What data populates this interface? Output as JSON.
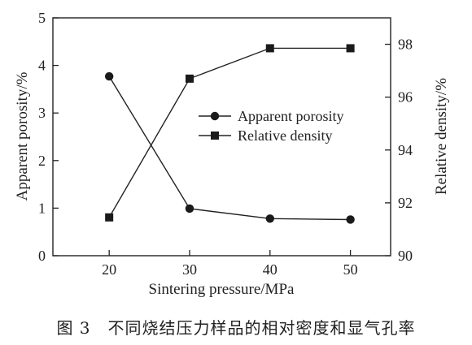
{
  "caption": "图 3　不同烧结压力样品的相对密度和显气孔率",
  "chart_data": {
    "type": "line",
    "xlabel": "Sintering pressure/MPa",
    "ylabel_left": "Apparent porosity/%",
    "ylabel_right": "Relative density/%",
    "x": [
      20,
      30,
      40,
      50
    ],
    "xticks": [
      20,
      30,
      40,
      50
    ],
    "xlim": [
      13,
      55
    ],
    "ylim_left": [
      0,
      5
    ],
    "yticks_left": [
      0,
      1,
      2,
      3,
      4,
      5
    ],
    "ylim_right": [
      90,
      99
    ],
    "yticks_right": [
      90,
      92,
      94,
      96,
      98
    ],
    "grid": false,
    "legend_position": "center-right",
    "series": [
      {
        "name": "Apparent porosity",
        "axis": "left",
        "marker": "circle",
        "values": [
          3.77,
          0.99,
          0.78,
          0.76
        ]
      },
      {
        "name": "Relative density",
        "axis": "right",
        "marker": "square",
        "values": [
          91.45,
          96.7,
          97.85,
          97.85
        ]
      }
    ]
  }
}
